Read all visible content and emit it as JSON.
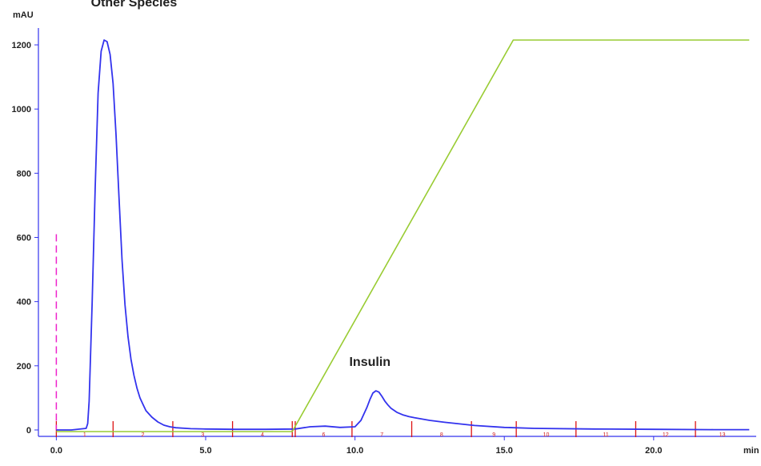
{
  "chart_data": {
    "type": "line",
    "title": "",
    "y_unit": "mAU",
    "x_unit": "min",
    "xlim": [
      -0.6,
      23.3
    ],
    "ylim": [
      -20,
      1240
    ],
    "x_ticks": [
      {
        "value": 0,
        "label": "0.0"
      },
      {
        "value": 5,
        "label": "5.0"
      },
      {
        "value": 10,
        "label": "10.0"
      },
      {
        "value": 15,
        "label": "15.0"
      },
      {
        "value": 20,
        "label": "20.0"
      }
    ],
    "y_ticks": [
      {
        "value": 0,
        "label": "0"
      },
      {
        "value": 200,
        "label": "200"
      },
      {
        "value": 400,
        "label": "400"
      },
      {
        "value": 600,
        "label": "600"
      },
      {
        "value": 800,
        "label": "800"
      },
      {
        "value": 1000,
        "label": "1000"
      },
      {
        "value": 1200,
        "label": "1200"
      }
    ],
    "grid": false,
    "colors": {
      "absorbance": "#3333ee",
      "gradient": "#99cc33",
      "fractions": "#dd1111",
      "injection": "#ee22cc",
      "axes": "#3333ee"
    },
    "series": [
      {
        "key": "absorbance",
        "x": [
          0.0,
          0.5,
          1.0,
          1.05,
          1.1,
          1.2,
          1.3,
          1.4,
          1.5,
          1.6,
          1.7,
          1.8,
          1.9,
          2.0,
          2.1,
          2.2,
          2.3,
          2.4,
          2.5,
          2.6,
          2.7,
          2.8,
          2.9,
          3.0,
          3.2,
          3.4,
          3.6,
          3.8,
          4.0,
          4.5,
          5.0,
          6.0,
          7.0,
          8.0,
          8.5,
          9.0,
          9.5,
          10.0,
          10.2,
          10.4,
          10.5,
          10.6,
          10.7,
          10.8,
          10.9,
          11.0,
          11.1,
          11.2,
          11.4,
          11.6,
          11.8,
          12.0,
          12.5,
          13.0,
          14.0,
          15.0,
          16.0,
          18.0,
          20.0,
          22.0,
          23.2
        ],
        "y": [
          0,
          0,
          5,
          20,
          90,
          400,
          750,
          1050,
          1180,
          1215,
          1210,
          1170,
          1080,
          920,
          720,
          530,
          390,
          290,
          220,
          170,
          130,
          100,
          80,
          60,
          40,
          25,
          15,
          10,
          7,
          4,
          3,
          2,
          2,
          3,
          10,
          12,
          8,
          10,
          30,
          70,
          95,
          115,
          122,
          118,
          105,
          90,
          78,
          68,
          55,
          47,
          42,
          38,
          30,
          24,
          14,
          8,
          5,
          3,
          2,
          1,
          1
        ]
      },
      {
        "key": "gradient",
        "x": [
          0,
          7.9,
          15.3,
          23.2
        ],
        "y": [
          -5,
          -5,
          1215,
          1215
        ]
      }
    ],
    "injection_mark": {
      "x": 0,
      "y_top": 610
    },
    "fractions": {
      "boundaries": [
        0,
        1.9,
        3.9,
        5.9,
        7.9,
        8.0,
        9.9,
        11.9,
        13.9,
        15.4,
        17.4,
        19.4,
        21.4
      ],
      "labels": [
        {
          "x": 0.95,
          "text": "1"
        },
        {
          "x": 2.9,
          "text": "2"
        },
        {
          "x": 4.9,
          "text": "3"
        },
        {
          "x": 6.9,
          "text": "4"
        },
        {
          "x": 8.95,
          "text": "6"
        },
        {
          "x": 10.9,
          "text": "7"
        },
        {
          "x": 12.9,
          "text": "8"
        },
        {
          "x": 14.65,
          "text": "9"
        },
        {
          "x": 16.4,
          "text": "10"
        },
        {
          "x": 18.4,
          "text": "11"
        },
        {
          "x": 20.4,
          "text": "12"
        },
        {
          "x": 22.3,
          "text": "13"
        }
      ]
    },
    "annotations": [
      {
        "text": "Other Species",
        "x": 2.6,
        "y": 1320
      },
      {
        "text": "Insulin",
        "x": 10.5,
        "y": 200
      }
    ]
  }
}
